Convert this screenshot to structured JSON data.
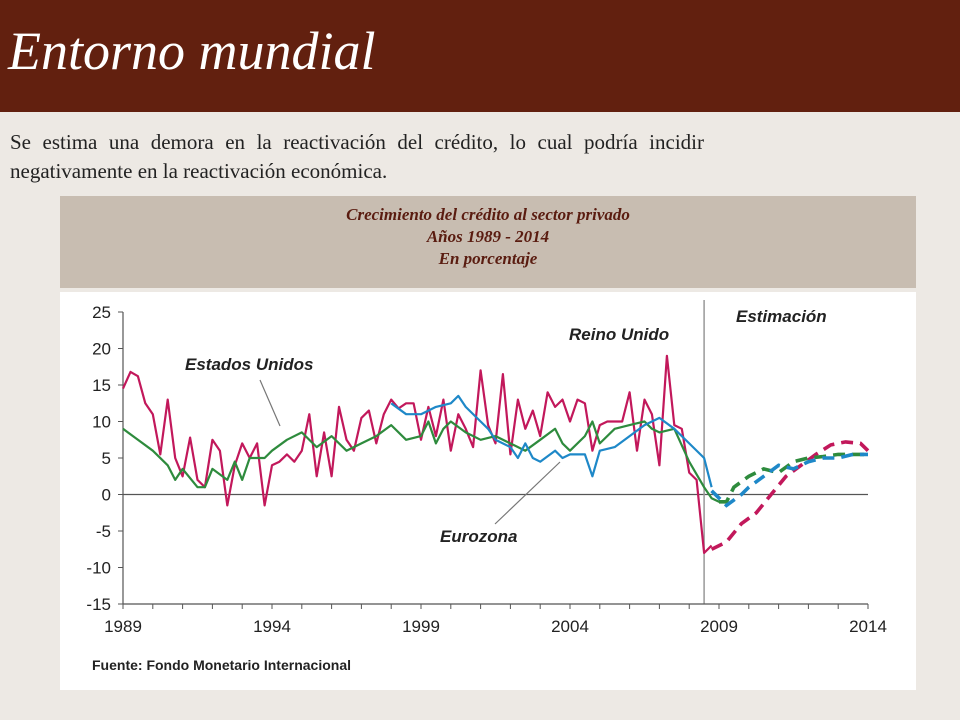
{
  "page": {
    "title": "Entorno mundial",
    "subtitle": "Se estima una demora en la reactivación del crédito, lo cual podría incidir negativamente en la reactivación económica."
  },
  "chart_header": {
    "line1": "Crecimiento del crédito al sector privado",
    "line2": "Años 1989 - 2014",
    "line3": "En porcentaje"
  },
  "chart_data": {
    "type": "line",
    "ylim": [
      -15,
      25
    ],
    "xlim": [
      1989,
      2014
    ],
    "yticks": [
      25,
      20,
      15,
      10,
      5,
      0,
      -5,
      -10,
      -15
    ],
    "xticks": [
      "1989",
      "1994",
      "1999",
      "2004",
      "2009",
      "2014"
    ],
    "estimation_start": 2008.5,
    "annotations": {
      "estimation": "Estimación",
      "reino_unido": "Reino Unido",
      "estados_unidos": "Estados Unidos",
      "eurozona": "Eurozona"
    },
    "source": "Fuente:  Fondo Monetario Internacional",
    "series": [
      {
        "name": "Reino Unido",
        "color": "#c2185b",
        "values": [
          [
            1989,
            14.5
          ],
          [
            1989.25,
            16.8
          ],
          [
            1989.5,
            16.2
          ],
          [
            1989.75,
            12.5
          ],
          [
            1990,
            11
          ],
          [
            1990.25,
            5.5
          ],
          [
            1990.5,
            13
          ],
          [
            1990.75,
            5
          ],
          [
            1991,
            2.5
          ],
          [
            1991.25,
            7.8
          ],
          [
            1991.5,
            2
          ],
          [
            1991.75,
            1
          ],
          [
            1992,
            7.5
          ],
          [
            1992.25,
            6
          ],
          [
            1992.5,
            -1.5
          ],
          [
            1992.75,
            4
          ],
          [
            1993,
            7
          ],
          [
            1993.25,
            5
          ],
          [
            1993.5,
            7
          ],
          [
            1993.75,
            -1.5
          ],
          [
            1994,
            4
          ],
          [
            1994.25,
            4.5
          ],
          [
            1994.5,
            5.5
          ],
          [
            1994.75,
            4.5
          ],
          [
            1995,
            6
          ],
          [
            1995.25,
            11
          ],
          [
            1995.5,
            2.5
          ],
          [
            1995.75,
            8.5
          ],
          [
            1996,
            2.5
          ],
          [
            1996.25,
            12
          ],
          [
            1996.5,
            7.5
          ],
          [
            1996.75,
            6
          ],
          [
            1997,
            10.5
          ],
          [
            1997.25,
            11.5
          ],
          [
            1997.5,
            7
          ],
          [
            1997.75,
            11
          ],
          [
            1998,
            13
          ],
          [
            1998.25,
            11.8
          ],
          [
            1998.5,
            12.5
          ],
          [
            1998.75,
            12.5
          ],
          [
            1999,
            7.5
          ],
          [
            1999.25,
            12
          ],
          [
            1999.5,
            8
          ],
          [
            1999.75,
            13
          ],
          [
            2000,
            6
          ],
          [
            2000.25,
            11
          ],
          [
            2000.5,
            9
          ],
          [
            2000.75,
            6.5
          ],
          [
            2001,
            17
          ],
          [
            2001.25,
            9.5
          ],
          [
            2001.5,
            7
          ],
          [
            2001.75,
            16.5
          ],
          [
            2002,
            5.5
          ],
          [
            2002.25,
            13
          ],
          [
            2002.5,
            9
          ],
          [
            2002.75,
            11.5
          ],
          [
            2003,
            8
          ],
          [
            2003.25,
            14
          ],
          [
            2003.5,
            12
          ],
          [
            2003.75,
            13
          ],
          [
            2004,
            10
          ],
          [
            2004.25,
            13
          ],
          [
            2004.5,
            12.5
          ],
          [
            2004.75,
            6
          ],
          [
            2005,
            9.5
          ],
          [
            2005.25,
            10
          ],
          [
            2005.5,
            10
          ],
          [
            2005.75,
            10
          ],
          [
            2006,
            14
          ],
          [
            2006.25,
            6
          ],
          [
            2006.5,
            13
          ],
          [
            2006.75,
            11
          ],
          [
            2007,
            4
          ],
          [
            2007.25,
            19
          ],
          [
            2007.5,
            9.5
          ],
          [
            2007.75,
            9
          ],
          [
            2008,
            3
          ],
          [
            2008.25,
            2
          ],
          [
            2008.5,
            -8
          ],
          [
            2008.75,
            -7
          ]
        ]
      },
      {
        "name": "Estados Unidos",
        "color": "#2e8b3d",
        "values": [
          [
            1989,
            9
          ],
          [
            1989.5,
            7.5
          ],
          [
            1990,
            6
          ],
          [
            1990.5,
            4
          ],
          [
            1990.75,
            2
          ],
          [
            1991,
            3.5
          ],
          [
            1991.5,
            1
          ],
          [
            1991.75,
            1
          ],
          [
            1992,
            3.5
          ],
          [
            1992.5,
            2
          ],
          [
            1992.75,
            4.5
          ],
          [
            1993,
            2
          ],
          [
            1993.25,
            5
          ],
          [
            1993.75,
            5
          ],
          [
            1994,
            6
          ],
          [
            1994.5,
            7.5
          ],
          [
            1995,
            8.5
          ],
          [
            1995.5,
            6.5
          ],
          [
            1996,
            8
          ],
          [
            1996.5,
            6
          ],
          [
            1997,
            7
          ],
          [
            1997.5,
            8
          ],
          [
            1998,
            9.5
          ],
          [
            1998.5,
            7.5
          ],
          [
            1999,
            8
          ],
          [
            1999.25,
            10
          ],
          [
            1999.5,
            7
          ],
          [
            1999.75,
            9
          ],
          [
            2000,
            10
          ],
          [
            2000.5,
            8.5
          ],
          [
            2001,
            7.5
          ],
          [
            2001.5,
            8
          ],
          [
            2002,
            7
          ],
          [
            2002.5,
            6
          ],
          [
            2003,
            7.5
          ],
          [
            2003.5,
            9
          ],
          [
            2003.75,
            7
          ],
          [
            2004,
            6
          ],
          [
            2004.5,
            8
          ],
          [
            2004.75,
            10
          ],
          [
            2005,
            7
          ],
          [
            2005.5,
            9
          ],
          [
            2006,
            9.5
          ],
          [
            2006.5,
            10
          ],
          [
            2006.75,
            9
          ],
          [
            2007,
            8.5
          ],
          [
            2007.5,
            9
          ],
          [
            2008,
            4.5
          ],
          [
            2008.5,
            1
          ],
          [
            2008.75,
            -0.5
          ],
          [
            2009,
            -1
          ],
          [
            2009.25,
            -1
          ]
        ]
      },
      {
        "name": "Eurozona",
        "color": "#1e88c8",
        "values": [
          [
            1998,
            12.5
          ],
          [
            1998.5,
            11
          ],
          [
            1999,
            11
          ],
          [
            1999.5,
            12
          ],
          [
            2000,
            12.5
          ],
          [
            2000.25,
            13.5
          ],
          [
            2000.5,
            12
          ],
          [
            2001,
            10
          ],
          [
            2001.25,
            9
          ],
          [
            2001.5,
            7.5
          ],
          [
            2002,
            6.5
          ],
          [
            2002.25,
            5
          ],
          [
            2002.5,
            7
          ],
          [
            2002.75,
            5
          ],
          [
            2003,
            4.5
          ],
          [
            2003.5,
            6
          ],
          [
            2003.75,
            5
          ],
          [
            2004,
            5.5
          ],
          [
            2004.5,
            5.5
          ],
          [
            2004.75,
            2.5
          ],
          [
            2005,
            6
          ],
          [
            2005.5,
            6.5
          ],
          [
            2006,
            8
          ],
          [
            2006.5,
            9.5
          ],
          [
            2007,
            10.5
          ],
          [
            2007.5,
            9
          ],
          [
            2008,
            7
          ],
          [
            2008.5,
            5
          ],
          [
            2008.75,
            1
          ]
        ]
      }
    ],
    "forecast_series": [
      {
        "name": "Reino Unido",
        "color": "#c2185b",
        "values": [
          [
            2008.75,
            -7.5
          ],
          [
            2009.25,
            -6.5
          ],
          [
            2009.75,
            -4
          ],
          [
            2010.25,
            -2.5
          ],
          [
            2010.75,
            0
          ],
          [
            2011.25,
            2.5
          ],
          [
            2011.75,
            4
          ],
          [
            2012.25,
            5.5
          ],
          [
            2012.75,
            6.8
          ],
          [
            2013.25,
            7.2
          ],
          [
            2013.75,
            7
          ],
          [
            2014,
            6
          ]
        ]
      },
      {
        "name": "Estados Unidos",
        "color": "#2e8b3d",
        "values": [
          [
            2009,
            -1
          ],
          [
            2009.25,
            -1
          ],
          [
            2009.5,
            1
          ],
          [
            2010,
            2.5
          ],
          [
            2010.5,
            3.5
          ],
          [
            2011,
            3
          ],
          [
            2011.5,
            4.5
          ],
          [
            2012,
            5
          ],
          [
            2012.5,
            5.2
          ],
          [
            2013,
            5.5
          ],
          [
            2013.5,
            5.5
          ],
          [
            2014,
            5.5
          ]
        ]
      },
      {
        "name": "Eurozona",
        "color": "#1e88c8",
        "values": [
          [
            2008.75,
            0.5
          ],
          [
            2009.25,
            -1.5
          ],
          [
            2009.75,
            0
          ],
          [
            2010,
            1
          ],
          [
            2010.5,
            2.5
          ],
          [
            2011,
            4
          ],
          [
            2011.5,
            3.5
          ],
          [
            2012,
            4.5
          ],
          [
            2012.5,
            5
          ],
          [
            2013,
            5
          ],
          [
            2013.5,
            5.5
          ],
          [
            2014,
            5.5
          ]
        ]
      }
    ]
  }
}
